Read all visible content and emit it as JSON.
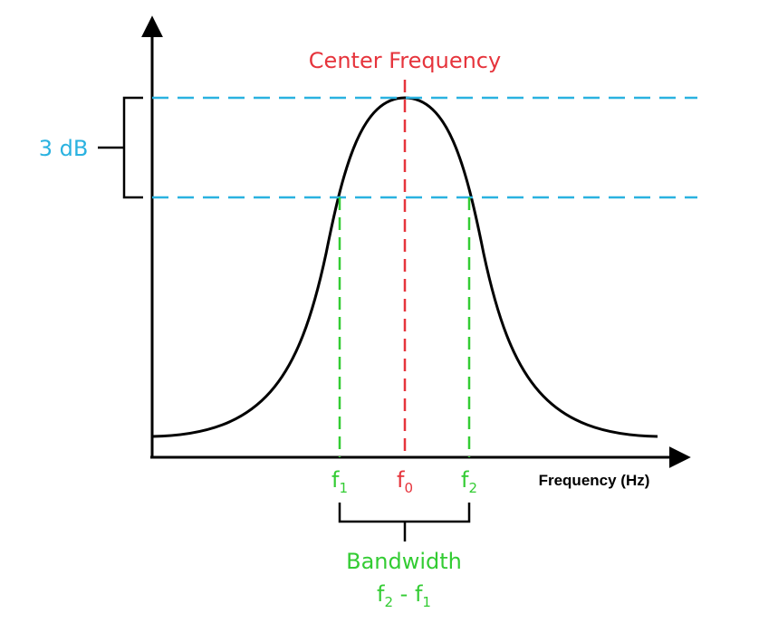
{
  "center_frequency_label": "Center Frequency",
  "db_label": "3 dB",
  "x_axis_label": "Frequency (Hz)",
  "f1": {
    "base": "f",
    "sub": "1"
  },
  "f0": {
    "base": "f",
    "sub": "0"
  },
  "f2": {
    "base": "f",
    "sub": "2"
  },
  "bandwidth_label": "Bandwidth",
  "bandwidth_formula": {
    "a": "f",
    "a_sub": "2",
    "op": " - ",
    "b": "f",
    "b_sub": "1"
  },
  "colors": {
    "curve": "#000000",
    "axes": "#000000",
    "center": "#e6343c",
    "db": "#2ab2e0",
    "bandwidth": "#33cc33"
  }
}
